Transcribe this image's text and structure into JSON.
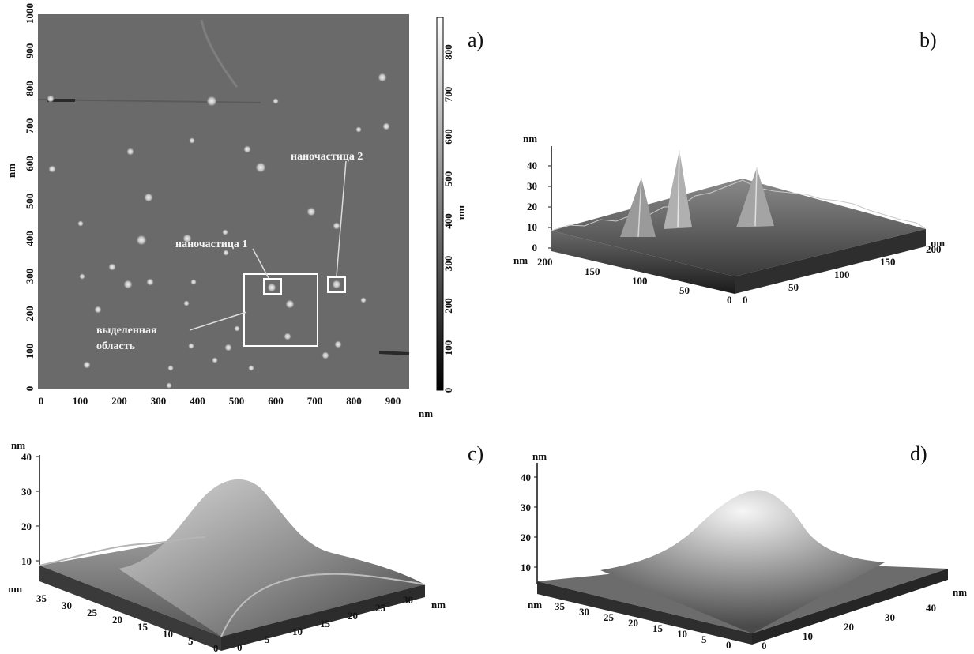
{
  "panels": {
    "a": {
      "label": "a)",
      "x_ticks": [
        "0",
        "100",
        "200",
        "300",
        "400",
        "500",
        "600",
        "700",
        "800",
        "900"
      ],
      "y_ticks": [
        "0",
        "100",
        "200",
        "300",
        "400",
        "500",
        "600",
        "700",
        "800",
        "900",
        "1000"
      ],
      "scale_ticks": [
        "0",
        "100",
        "200",
        "300",
        "400",
        "500",
        "600",
        "700",
        "800"
      ],
      "x_unit": "nm",
      "y_unit": "nm",
      "scale_unit": "nm",
      "annotations": {
        "particle1": "наночастица 1",
        "particle2": "наночастица 2",
        "region_line1": "выделенная",
        "region_line2": "область"
      }
    },
    "b": {
      "label": "b)",
      "z_unit": "nm",
      "z_ticks": [
        "0",
        "10",
        "20",
        "30",
        "40"
      ],
      "left_unit": "nm",
      "left_ticks": [
        "200",
        "150",
        "100",
        "50",
        "0"
      ],
      "right_ticks": [
        "0",
        "50",
        "100",
        "150",
        "200"
      ],
      "right_unit": "nm"
    },
    "c": {
      "label": "c)",
      "z_unit": "nm",
      "z_ticks": [
        "10",
        "20",
        "30",
        "40"
      ],
      "left_unit": "nm",
      "left_ticks": [
        "35",
        "30",
        "25",
        "20",
        "15",
        "10",
        "5",
        "0"
      ],
      "right_ticks": [
        "0",
        "5",
        "10",
        "15",
        "20",
        "25",
        "30"
      ],
      "right_unit": "nm"
    },
    "d": {
      "label": "d)",
      "z_unit": "nm",
      "z_ticks": [
        "10",
        "20",
        "30",
        "40"
      ],
      "left_unit": "nm",
      "left_ticks": [
        "35",
        "30",
        "25",
        "20",
        "15",
        "10",
        "5",
        "0"
      ],
      "right_ticks": [
        "0",
        "10",
        "20",
        "30",
        "40"
      ],
      "right_unit": "nm"
    }
  }
}
